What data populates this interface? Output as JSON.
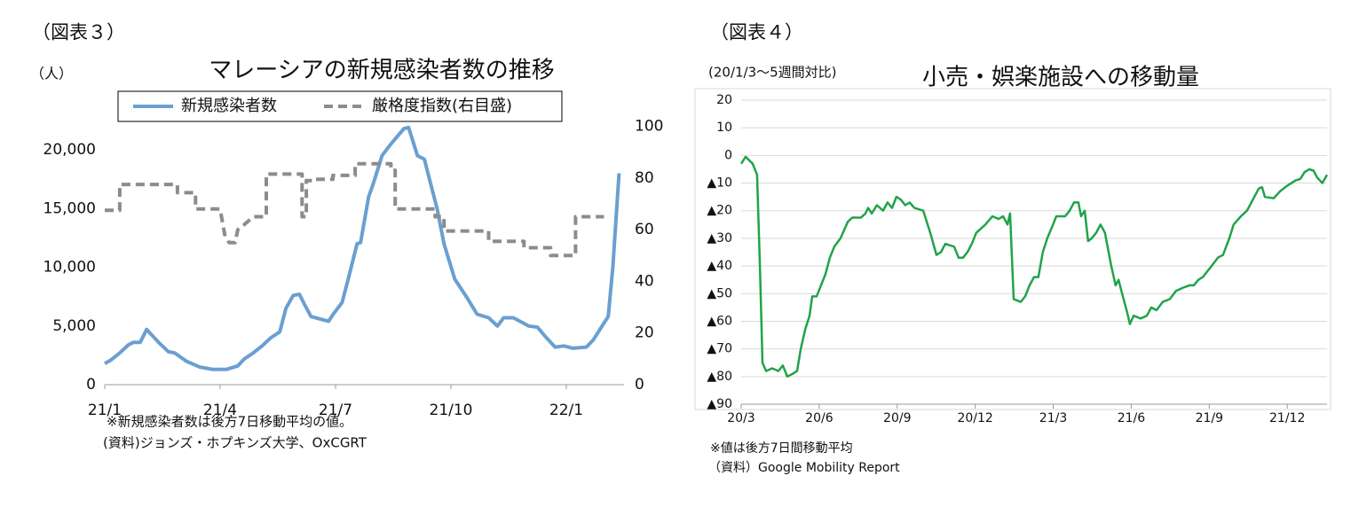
{
  "chart_data": [
    {
      "type": "line",
      "figure_label": "（図表３）",
      "title": "マレーシアの新規感染者数の推移",
      "ylabel": "（人）",
      "notes": [
        "※新規感染者数は後方7日移動平均の値。",
        "(資料)ジョンズ・ホプキンズ大学、OxCGRT"
      ],
      "xlim": [
        0,
        13.5
      ],
      "xticks": [
        {
          "value": 0,
          "label": "21/1"
        },
        {
          "value": 3,
          "label": "21/4"
        },
        {
          "value": 6,
          "label": "21/7"
        },
        {
          "value": 9,
          "label": "21/10"
        },
        {
          "value": 12,
          "label": "22/1"
        }
      ],
      "ylim": [
        0,
        22000
      ],
      "yticks": [
        0,
        {
          "value": 5000,
          "label": "5,000"
        },
        {
          "value": 10000,
          "label": "10,000"
        },
        {
          "value": 15000,
          "label": "15,000"
        },
        {
          "value": 20000,
          "label": "20,000"
        }
      ],
      "y2lim": [
        0,
        100
      ],
      "y2ticks": [
        0,
        20,
        40,
        60,
        80,
        100
      ],
      "grid": false,
      "legend": "top",
      "series": [
        {
          "name": "新規感染者数",
          "color": "#6a9fd0",
          "dash": false,
          "x": [
            0,
            0.16,
            0.39,
            0.62,
            0.74,
            0.92,
            1.09,
            1.43,
            1.66,
            1.82,
            2.12,
            2.47,
            2.82,
            3.16,
            3.46,
            3.63,
            3.86,
            4.09,
            4.32,
            4.55,
            4.71,
            4.9,
            5.06,
            5.2,
            5.36,
            5.59,
            5.82,
            5.94,
            6.17,
            6.33,
            6.56,
            6.65,
            6.86,
            6.97,
            7.21,
            7.44,
            7.78,
            7.9,
            8.13,
            8.31,
            8.48,
            8.64,
            8.82,
            9.1,
            9.4,
            9.68,
            9.98,
            10.21,
            10.37,
            10.62,
            10.79,
            11.02,
            11.25,
            11.48,
            11.71,
            11.94,
            12.17,
            12.52,
            12.7,
            12.93,
            13.09,
            13.21,
            13.37
          ],
          "values": [
            1800,
            2100,
            2700,
            3400,
            3600,
            3600,
            4700,
            3500,
            2800,
            2700,
            2000,
            1500,
            1300,
            1300,
            1600,
            2200,
            2700,
            3300,
            4000,
            4500,
            6500,
            7600,
            7700,
            6800,
            5800,
            5600,
            5400,
            6000,
            7000,
            9000,
            12000,
            12100,
            16000,
            17000,
            19500,
            20500,
            21800,
            21900,
            19500,
            19200,
            17000,
            15000,
            12000,
            9000,
            7500,
            6000,
            5700,
            5000,
            5700,
            5700,
            5400,
            5000,
            4900,
            4000,
            3200,
            3300,
            3100,
            3200,
            3800,
            5000,
            5800,
            10000,
            18000
          ]
        },
        {
          "name": "厳格度指数(右目盛)",
          "color": "#8c8c8c",
          "dash": true,
          "axis": "y2",
          "x": [
            0,
            0.39,
            0.39,
            1.89,
            1.89,
            2.36,
            2.36,
            3.0,
            3.12,
            3.23,
            3.39,
            3.46,
            3.63,
            3.86,
            4.2,
            4.2,
            5.13,
            5.13,
            5.24,
            5.24,
            5.47,
            5.47,
            5.93,
            5.93,
            6.51,
            6.51,
            7.44,
            7.44,
            7.55,
            7.55,
            8.59,
            8.59,
            8.82,
            8.82,
            9.98,
            9.98,
            10.9,
            10.9,
            11.59,
            11.59,
            12.24,
            12.24,
            12.98
          ],
          "values": [
            67.5,
            67.5,
            77.5,
            77.5,
            74.3,
            74.3,
            68,
            68,
            58,
            55,
            55,
            60,
            62,
            65,
            65,
            81.5,
            81.5,
            65,
            65,
            79,
            79,
            79.5,
            79.5,
            81,
            81,
            85.5,
            85.5,
            83,
            83,
            68,
            68,
            65,
            65,
            59.5,
            59.5,
            55.5,
            55.5,
            53,
            53,
            50,
            50,
            65,
            65
          ]
        }
      ]
    },
    {
      "type": "line",
      "figure_label": "（図表４）",
      "title": "小売・娯楽施設への移動量",
      "ylabel": "(20/1/3～5週間対比)",
      "notes": [
        "※値は後方7日間移動平均",
        "（資料）Google Mobility Report"
      ],
      "xlim": [
        0,
        22.53
      ],
      "xticks": [
        {
          "value": 0,
          "label": "20/3"
        },
        {
          "value": 3,
          "label": "20/6"
        },
        {
          "value": 6,
          "label": "20/9"
        },
        {
          "value": 9,
          "label": "20/12"
        },
        {
          "value": 12,
          "label": "21/3"
        },
        {
          "value": 15,
          "label": "21/6"
        },
        {
          "value": 18,
          "label": "21/9"
        },
        {
          "value": 21,
          "label": "21/12"
        }
      ],
      "ylim": [
        -90,
        20
      ],
      "yticks": [
        20,
        10,
        0,
        {
          "value": -10,
          "label": "▲10"
        },
        {
          "value": -20,
          "label": "▲20"
        },
        {
          "value": -30,
          "label": "▲30"
        },
        {
          "value": -40,
          "label": "▲40"
        },
        {
          "value": -50,
          "label": "▲50"
        },
        {
          "value": -60,
          "label": "▲60"
        },
        {
          "value": -70,
          "label": "▲70"
        },
        {
          "value": -80,
          "label": "▲80"
        },
        {
          "value": -90,
          "label": "▲90"
        }
      ],
      "grid": true,
      "series": [
        {
          "name": null,
          "color": "#21a34a",
          "dash": false,
          "x": [
            0,
            0.17,
            0.44,
            0.61,
            0.72,
            0.82,
            0.96,
            1.19,
            1.43,
            1.6,
            1.77,
            1.98,
            2.15,
            2.29,
            2.46,
            2.63,
            2.73,
            2.9,
            3.07,
            3.24,
            3.41,
            3.58,
            3.82,
            4.1,
            4.27,
            4.61,
            4.78,
            4.88,
            5.02,
            5.22,
            5.46,
            5.63,
            5.8,
            5.97,
            6.14,
            6.31,
            6.48,
            6.66,
            7.0,
            7.27,
            7.51,
            7.68,
            7.85,
            8.19,
            8.36,
            8.53,
            8.7,
            8.87,
            9.04,
            9.39,
            9.66,
            9.9,
            10.07,
            10.24,
            10.34,
            10.48,
            10.75,
            10.92,
            11.09,
            11.26,
            11.43,
            11.6,
            11.77,
            11.95,
            12.12,
            12.46,
            12.63,
            12.8,
            12.97,
            13.07,
            13.21,
            13.34,
            13.48,
            13.65,
            13.82,
            13.99,
            14.23,
            14.4,
            14.51,
            14.68,
            14.85,
            14.95,
            15.09,
            15.36,
            15.6,
            15.77,
            15.97,
            16.21,
            16.48,
            16.72,
            16.96,
            17.24,
            17.41,
            17.58,
            17.75,
            17.92,
            18.09,
            18.33,
            18.53,
            18.77,
            18.94,
            19.22,
            19.45,
            19.62,
            19.9,
            20.03,
            20.14,
            20.48,
            20.72,
            20.99,
            21.33,
            21.5,
            21.67,
            21.84,
            22.01,
            22.15,
            22.35,
            22.53
          ],
          "values": [
            -3,
            -0.5,
            -3,
            -7,
            -40,
            -75,
            -78,
            -77,
            -78,
            -76,
            -80,
            -79,
            -78,
            -70,
            -63,
            -58,
            -51,
            -51,
            -47,
            -43,
            -37,
            -33,
            -30,
            -24,
            -22.5,
            -22.5,
            -21,
            -19,
            -21,
            -18,
            -20,
            -17,
            -19,
            -15,
            -16,
            -18,
            -17,
            -19,
            -20,
            -28,
            -36,
            -35,
            -32,
            -33,
            -37,
            -37,
            -35,
            -32,
            -28,
            -25,
            -22,
            -23,
            -22,
            -25,
            -21,
            -52,
            -53,
            -51,
            -47,
            -44,
            -44,
            -35,
            -30,
            -26,
            -22,
            -22,
            -20,
            -17,
            -17,
            -22,
            -20,
            -31,
            -30,
            -28,
            -25,
            -28,
            -40,
            -47,
            -45,
            -51,
            -57,
            -61,
            -58,
            -59,
            -58,
            -55,
            -56,
            -53,
            -52,
            -49,
            -48,
            -47,
            -47,
            -45,
            -44,
            -42,
            -40,
            -37,
            -36,
            -30,
            -25,
            -22,
            -20,
            -17,
            -12,
            -11.5,
            -15,
            -15.5,
            -13,
            -11,
            -9,
            -8.5,
            -6,
            -5,
            -5.5,
            -8,
            -10,
            -7
          ]
        }
      ]
    }
  ]
}
